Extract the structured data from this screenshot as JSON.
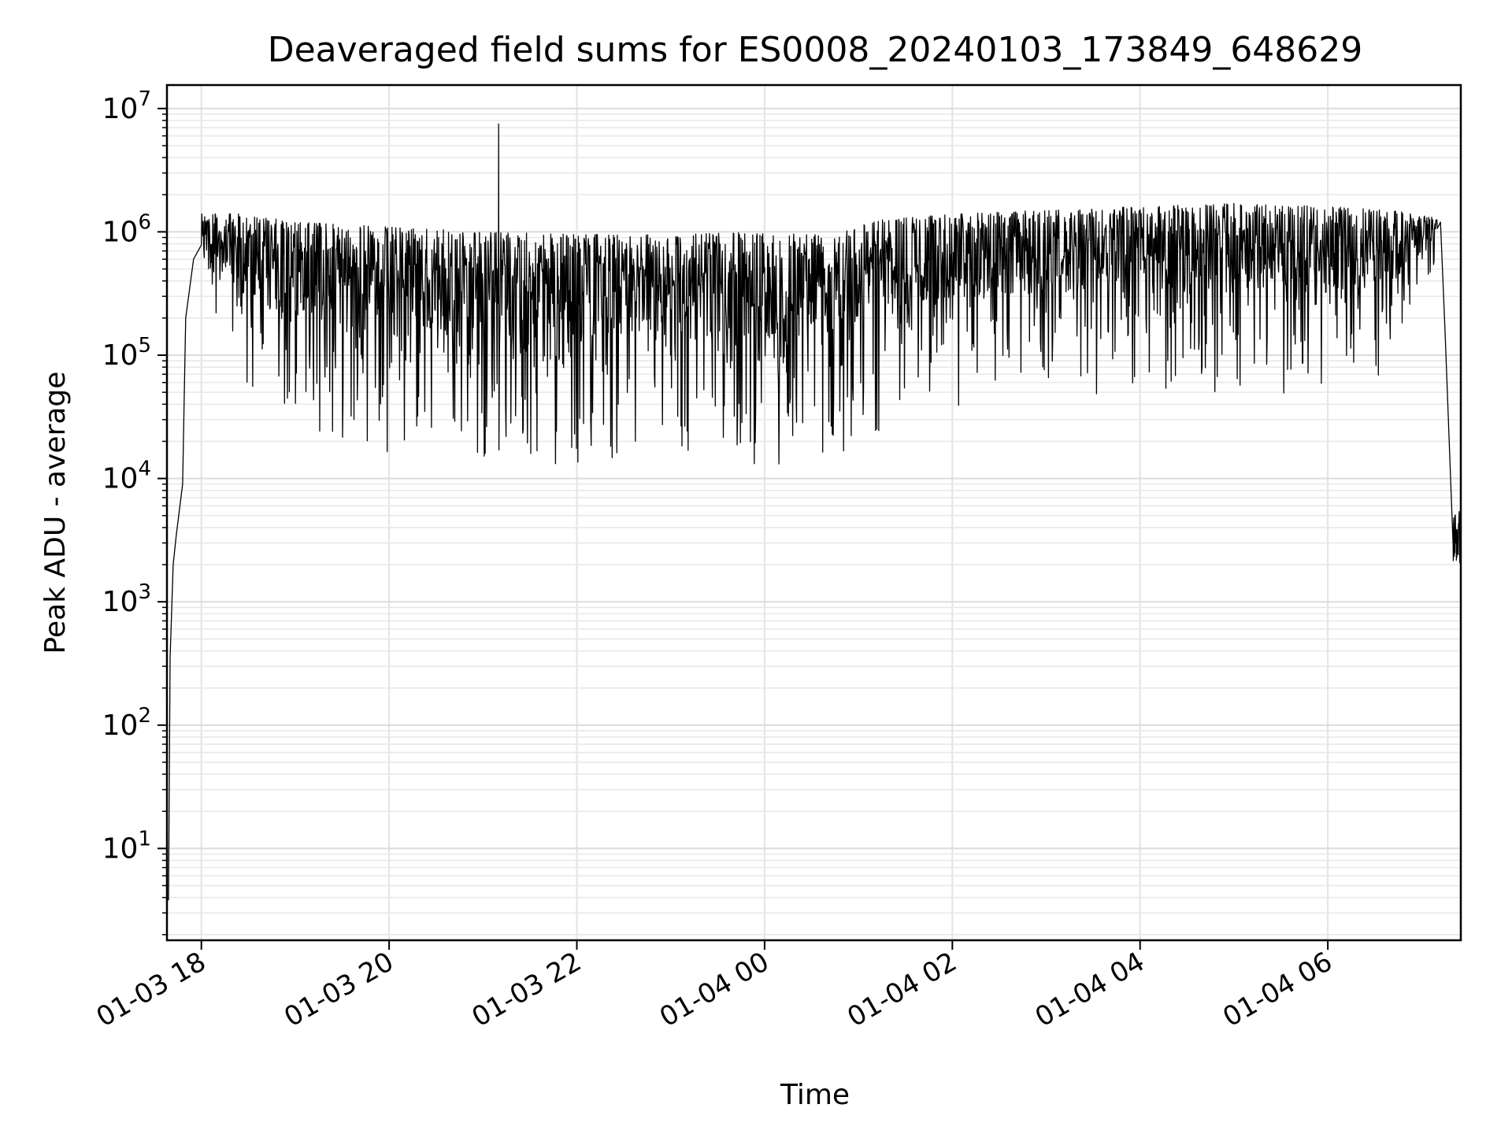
{
  "chart_data": {
    "type": "line",
    "title": "Deaveraged field sums for ES0008_20240103_173849_648629",
    "xlabel": "Time",
    "ylabel": "Peak ADU - average",
    "x_scale": "time",
    "y_scale": "log",
    "xlim": [
      "2024-01-03 17:38",
      "2024-01-04 07:25"
    ],
    "ylim": [
      1.8,
      15500000
    ],
    "grid": true,
    "x_ticks": [
      {
        "label": "01-03 18",
        "time": "2024-01-03 18:00"
      },
      {
        "label": "01-03 20",
        "time": "2024-01-03 20:00"
      },
      {
        "label": "01-03 22",
        "time": "2024-01-03 22:00"
      },
      {
        "label": "01-04 00",
        "time": "2024-01-04 00:00"
      },
      {
        "label": "01-04 02",
        "time": "2024-01-04 02:00"
      },
      {
        "label": "01-04 04",
        "time": "2024-01-04 04:00"
      },
      {
        "label": "01-04 06",
        "time": "2024-01-04 06:00"
      }
    ],
    "y_ticks": [
      {
        "base": "10",
        "exp": "1",
        "value": 10
      },
      {
        "base": "10",
        "exp": "2",
        "value": 100
      },
      {
        "base": "10",
        "exp": "3",
        "value": 1000
      },
      {
        "base": "10",
        "exp": "4",
        "value": 10000
      },
      {
        "base": "10",
        "exp": "5",
        "value": 100000
      },
      {
        "base": "10",
        "exp": "6",
        "value": 1000000
      },
      {
        "base": "10",
        "exp": "7",
        "value": 10000000
      }
    ],
    "series": [
      {
        "color": "#000000",
        "description_points": [
          {
            "x": "2024-01-03 17:39",
            "y": 3.8
          },
          {
            "x": "2024-01-03 17:40",
            "y": 350
          },
          {
            "x": "2024-01-03 17:42",
            "y": 2000
          },
          {
            "x": "2024-01-03 17:44",
            "y": 3500
          },
          {
            "x": "2024-01-03 17:48",
            "y": 9000
          },
          {
            "x": "2024-01-03 17:50",
            "y": 200000
          },
          {
            "x": "2024-01-03 17:55",
            "y": 600000
          },
          {
            "x": "2024-01-03 18:05",
            "y": 1000000
          },
          {
            "x": "2024-01-03 18:30",
            "y": 800000
          },
          {
            "x": "2024-01-03 19:00",
            "y": 500000
          },
          {
            "x": "2024-01-03 20:00",
            "y": 300000
          },
          {
            "x": "2024-01-03 21:10",
            "y": 7500000
          },
          {
            "x": "2024-01-03 22:00",
            "y": 300000
          },
          {
            "x": "2024-01-04 00:00",
            "y": 300000
          },
          {
            "x": "2024-01-04 02:00",
            "y": 450000
          },
          {
            "x": "2024-01-04 04:00",
            "y": 600000
          },
          {
            "x": "2024-01-04 05:40",
            "y": 2200000
          },
          {
            "x": "2024-01-04 06:00",
            "y": 700000
          },
          {
            "x": "2024-01-04 07:12",
            "y": 1200000
          },
          {
            "x": "2024-01-04 07:15",
            "y": 150000
          },
          {
            "x": "2024-01-04 07:20",
            "y": 3000
          },
          {
            "x": "2024-01-04 07:25",
            "y": 4500
          }
        ],
        "noise_envelope": [
          {
            "x": "2024-01-03 18:00",
            "high": 1400000,
            "low": 500000
          },
          {
            "x": "2024-01-03 18:25",
            "high": 1400000,
            "low": 50000
          },
          {
            "x": "2024-01-03 19:00",
            "high": 1200000,
            "low": 20000
          },
          {
            "x": "2024-01-03 20:00",
            "high": 1100000,
            "low": 16000
          },
          {
            "x": "2024-01-03 21:00",
            "high": 1000000,
            "low": 14000
          },
          {
            "x": "2024-01-03 22:00",
            "high": 950000,
            "low": 11000
          },
          {
            "x": "2024-01-03 23:00",
            "high": 950000,
            "low": 12000
          },
          {
            "x": "2024-01-04 00:00",
            "high": 1000000,
            "low": 12000
          },
          {
            "x": "2024-01-04 00:45",
            "high": 1000000,
            "low": 13000
          },
          {
            "x": "2024-01-04 01:00",
            "high": 1200000,
            "low": 20000
          },
          {
            "x": "2024-01-04 02:00",
            "high": 1400000,
            "low": 35000
          },
          {
            "x": "2024-01-04 03:00",
            "high": 1500000,
            "low": 50000
          },
          {
            "x": "2024-01-04 04:00",
            "high": 1600000,
            "low": 45000
          },
          {
            "x": "2024-01-04 05:00",
            "high": 1700000,
            "low": 45000
          },
          {
            "x": "2024-01-04 06:00",
            "high": 1600000,
            "low": 45000
          },
          {
            "x": "2024-01-04 06:40",
            "high": 1500000,
            "low": 70000
          },
          {
            "x": "2024-01-04 07:10",
            "high": 1300000,
            "low": 600000
          }
        ]
      }
    ]
  }
}
